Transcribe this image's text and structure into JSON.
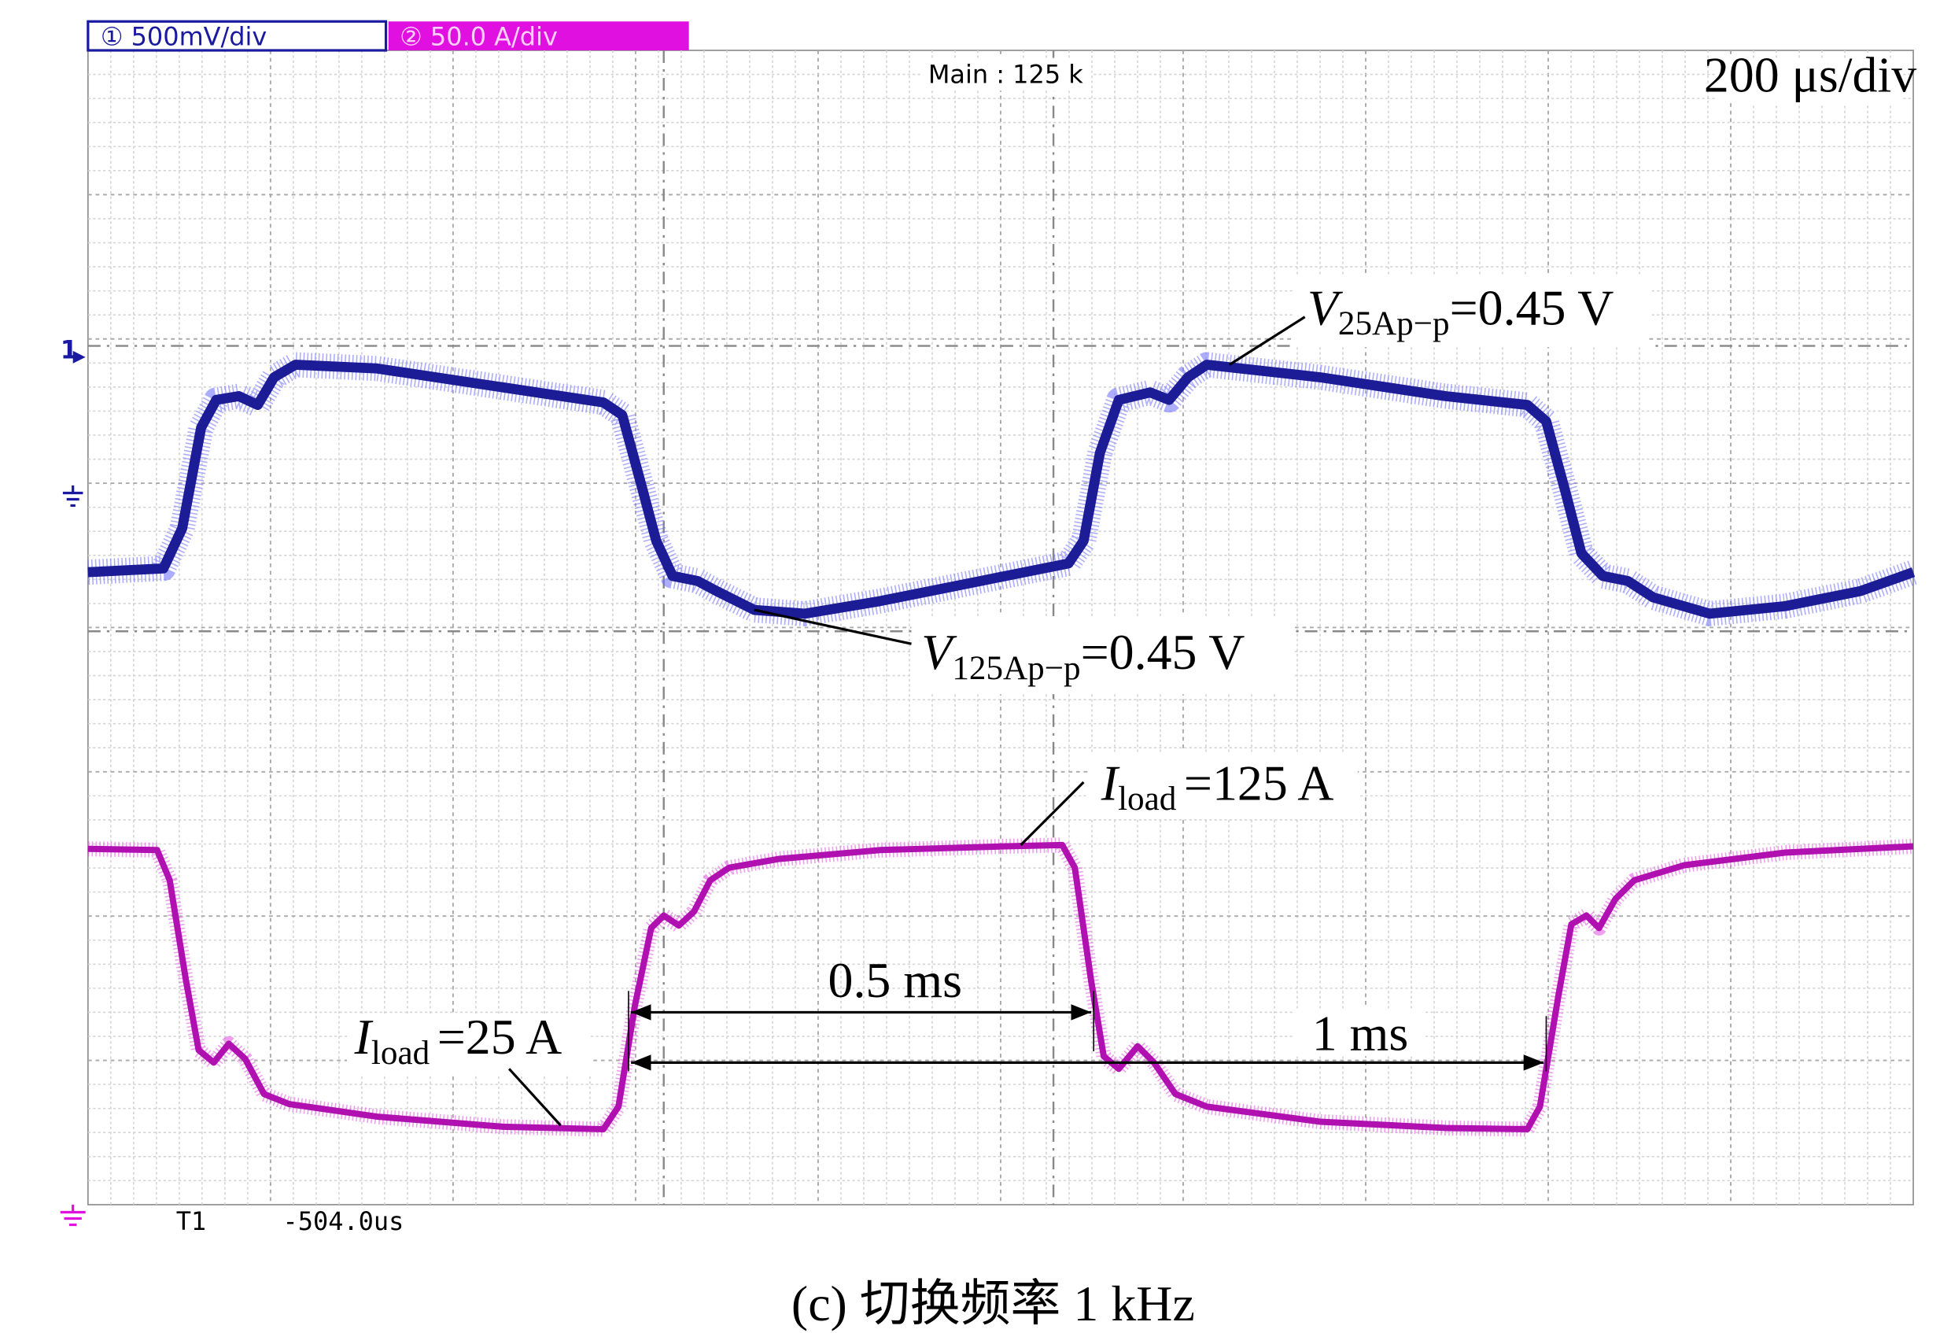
{
  "header": {
    "channel1": "① 500mV/div",
    "channel2": "② 50.0 A/div",
    "timebase_main": "Main : 125 k",
    "timebase": "200 μs/div",
    "channel_marker": "1"
  },
  "annotations": {
    "v_25a": {
      "symbol": "V",
      "subscript": "25Ap−p",
      "value": "=0.45 V"
    },
    "v_125a": {
      "symbol": "V",
      "subscript": "125Ap−p",
      "value": "=0.45 V"
    },
    "i_125a": {
      "symbol": "I",
      "subscript": "load",
      "value": "=125 A"
    },
    "i_25a": {
      "symbol": "I",
      "subscript": "load",
      "value": "=25 A"
    },
    "interval_half": "0.5 ms",
    "interval_full": "1 ms"
  },
  "footer": {
    "trigger": "T1",
    "trigger_time": "-504.0us"
  },
  "caption": "(c) 切换频率 1 kHz"
}
